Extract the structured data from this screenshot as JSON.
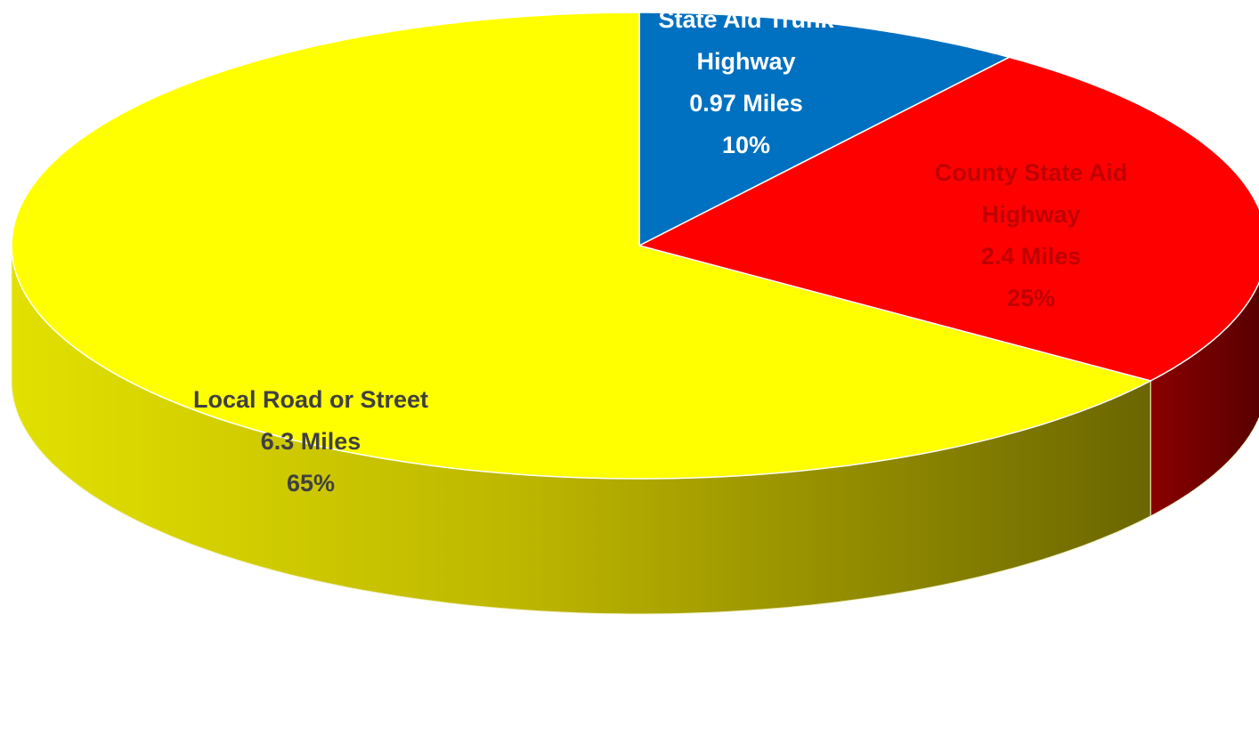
{
  "chart_data": {
    "type": "pie",
    "title": "",
    "slices": [
      {
        "lines": [
          "State Aid Trunk",
          "Highway",
          "0.97 Miles",
          "10%"
        ],
        "category": "State Aid Trunk Highway",
        "value": 0.97,
        "unit": "Miles",
        "percent": 10,
        "color": "#0070C0",
        "label_color": "#FFFFFF"
      },
      {
        "lines": [
          "County State Aid",
          "Highway",
          "2.4 Miles",
          "25%"
        ],
        "category": "County State Aid Highway",
        "value": 2.4,
        "unit": "Miles",
        "percent": 25,
        "color": "#FF0000",
        "label_color": "#C00000"
      },
      {
        "lines": [
          "Local Road or Street",
          "6.3 Miles",
          "65%"
        ],
        "category": "Local Road or Street",
        "value": 6.3,
        "unit": "Miles",
        "percent": 65,
        "color": "#FFFF00",
        "label_color": "#404040"
      }
    ],
    "style": "3d-pie",
    "legend": "none"
  }
}
